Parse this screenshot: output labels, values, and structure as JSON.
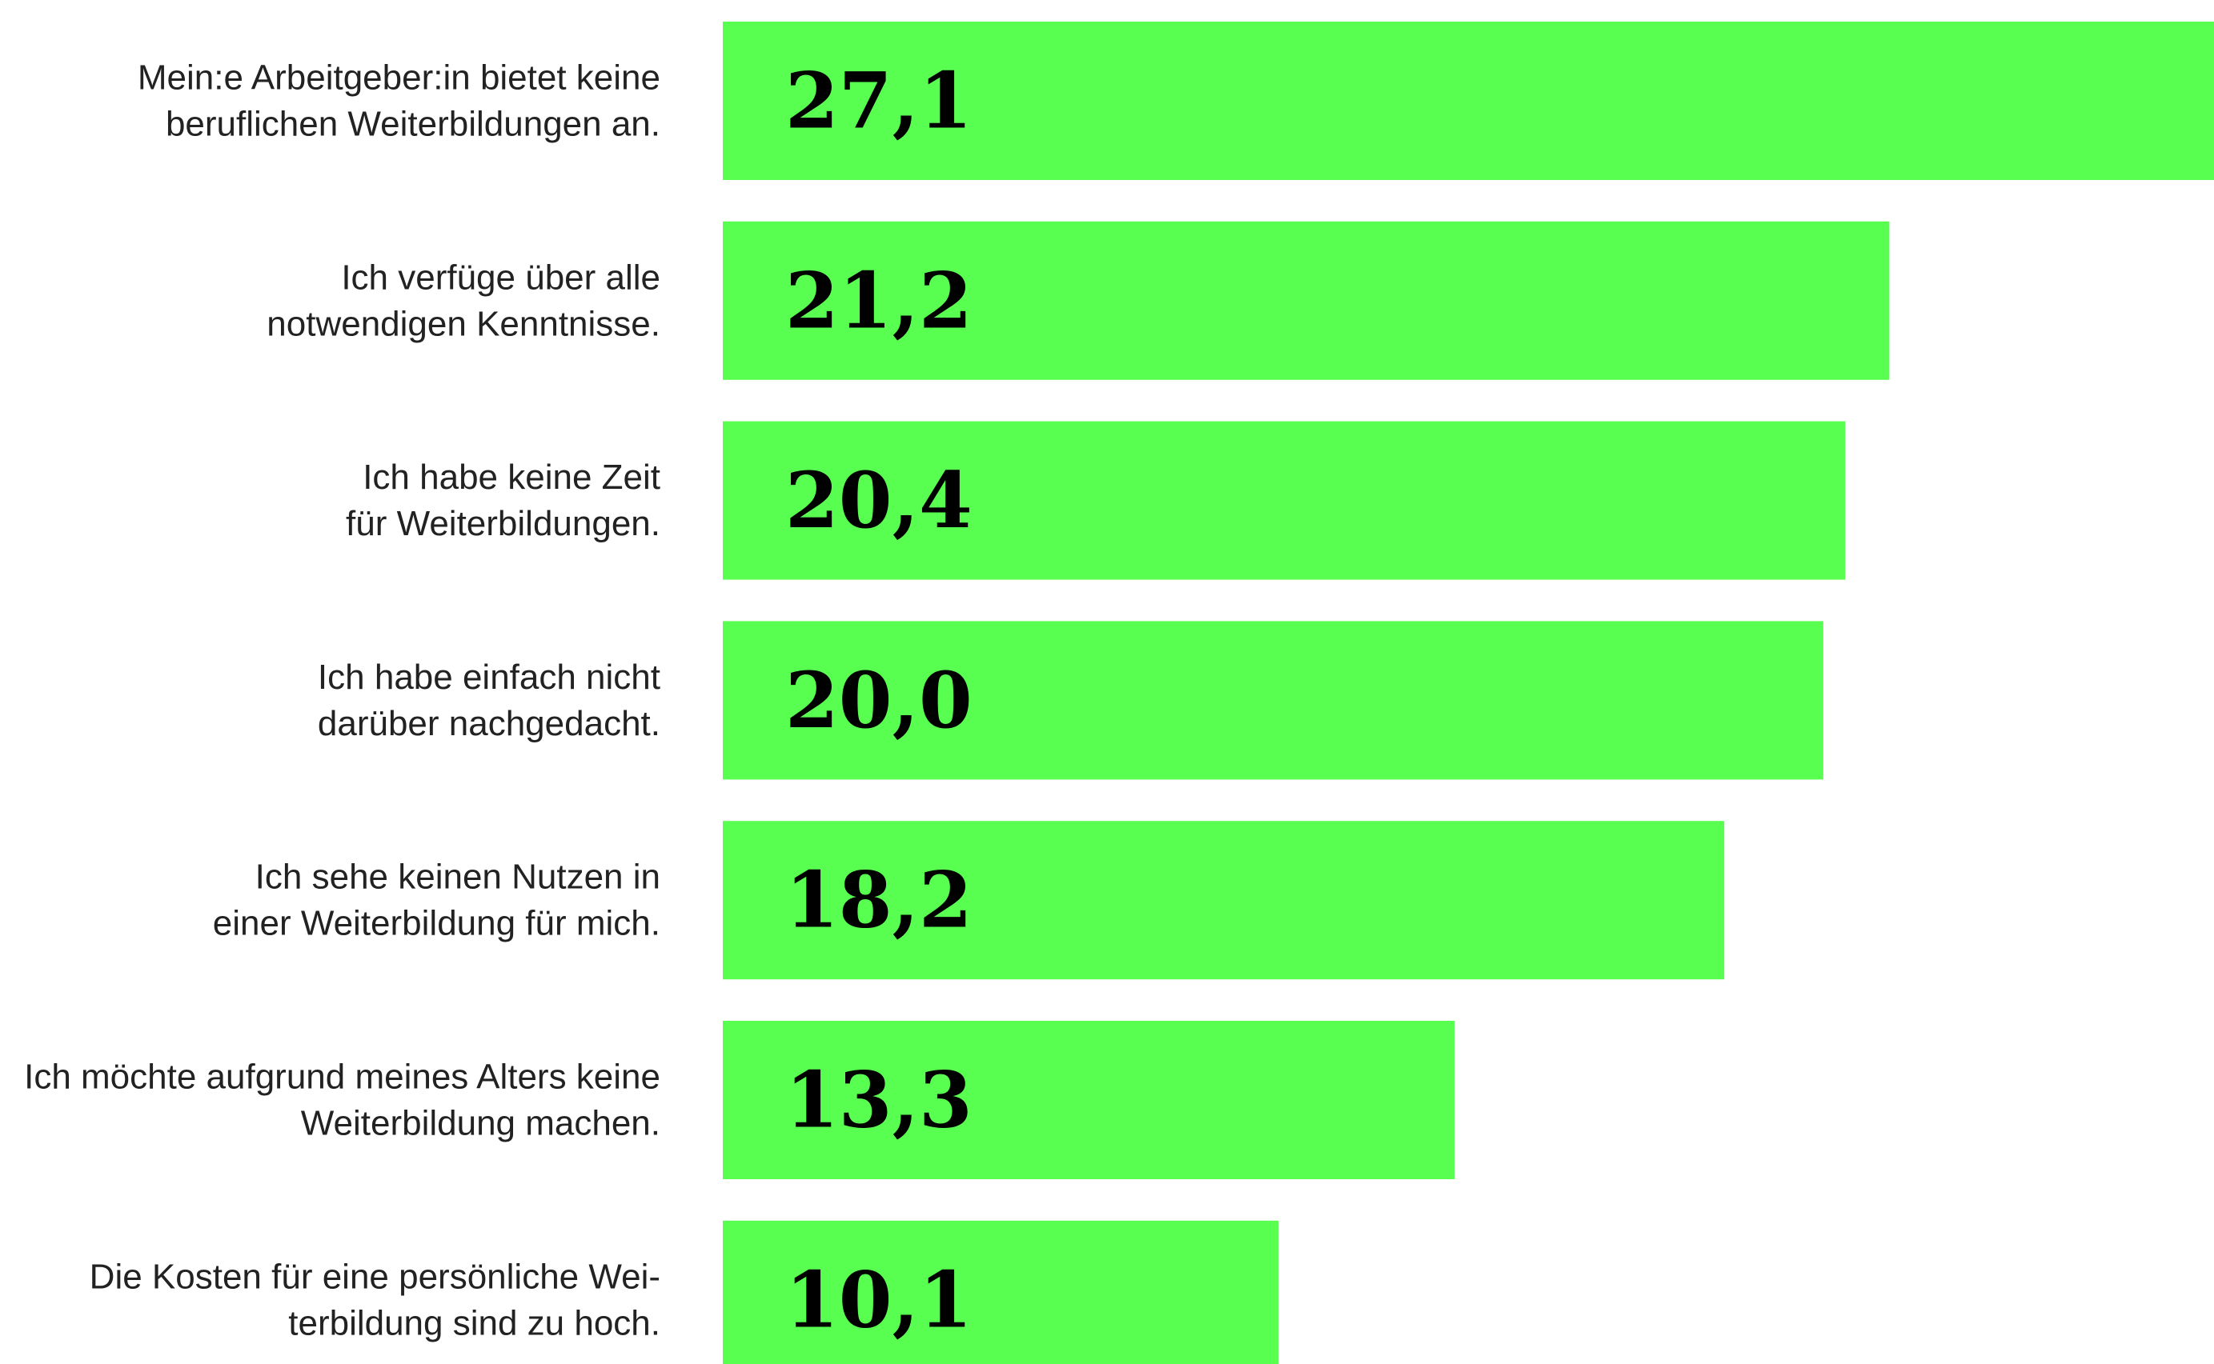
{
  "chart_data": {
    "type": "bar",
    "orientation": "horizontal",
    "categories": [
      [
        "Mein:e Arbeitgeber:in bietet keine",
        "beruflichen Weiterbildungen an."
      ],
      [
        "Ich verfüge über alle",
        "notwendigen Kenntnisse."
      ],
      [
        "Ich habe keine Zeit",
        "für Weiterbildungen."
      ],
      [
        "Ich habe einfach nicht",
        "darüber nachgedacht."
      ],
      [
        "Ich sehe keinen Nutzen in",
        "einer Weiterbildung für mich."
      ],
      [
        "Ich möchte aufgrund meines Alters keine",
        "Weiterbildung machen."
      ],
      [
        "Die Kosten für eine persönliche Wei-",
        "terbildung sind zu hoch."
      ]
    ],
    "values": [
      27.1,
      21.2,
      20.4,
      20.0,
      18.2,
      13.3,
      10.1
    ],
    "value_labels": [
      "27,1",
      "21,2",
      "20,4",
      "20,0",
      "18,2",
      "13,3",
      "10,1"
    ],
    "xlim": [
      0,
      27.1
    ],
    "grid": false,
    "bar_color": "#59ff50"
  }
}
